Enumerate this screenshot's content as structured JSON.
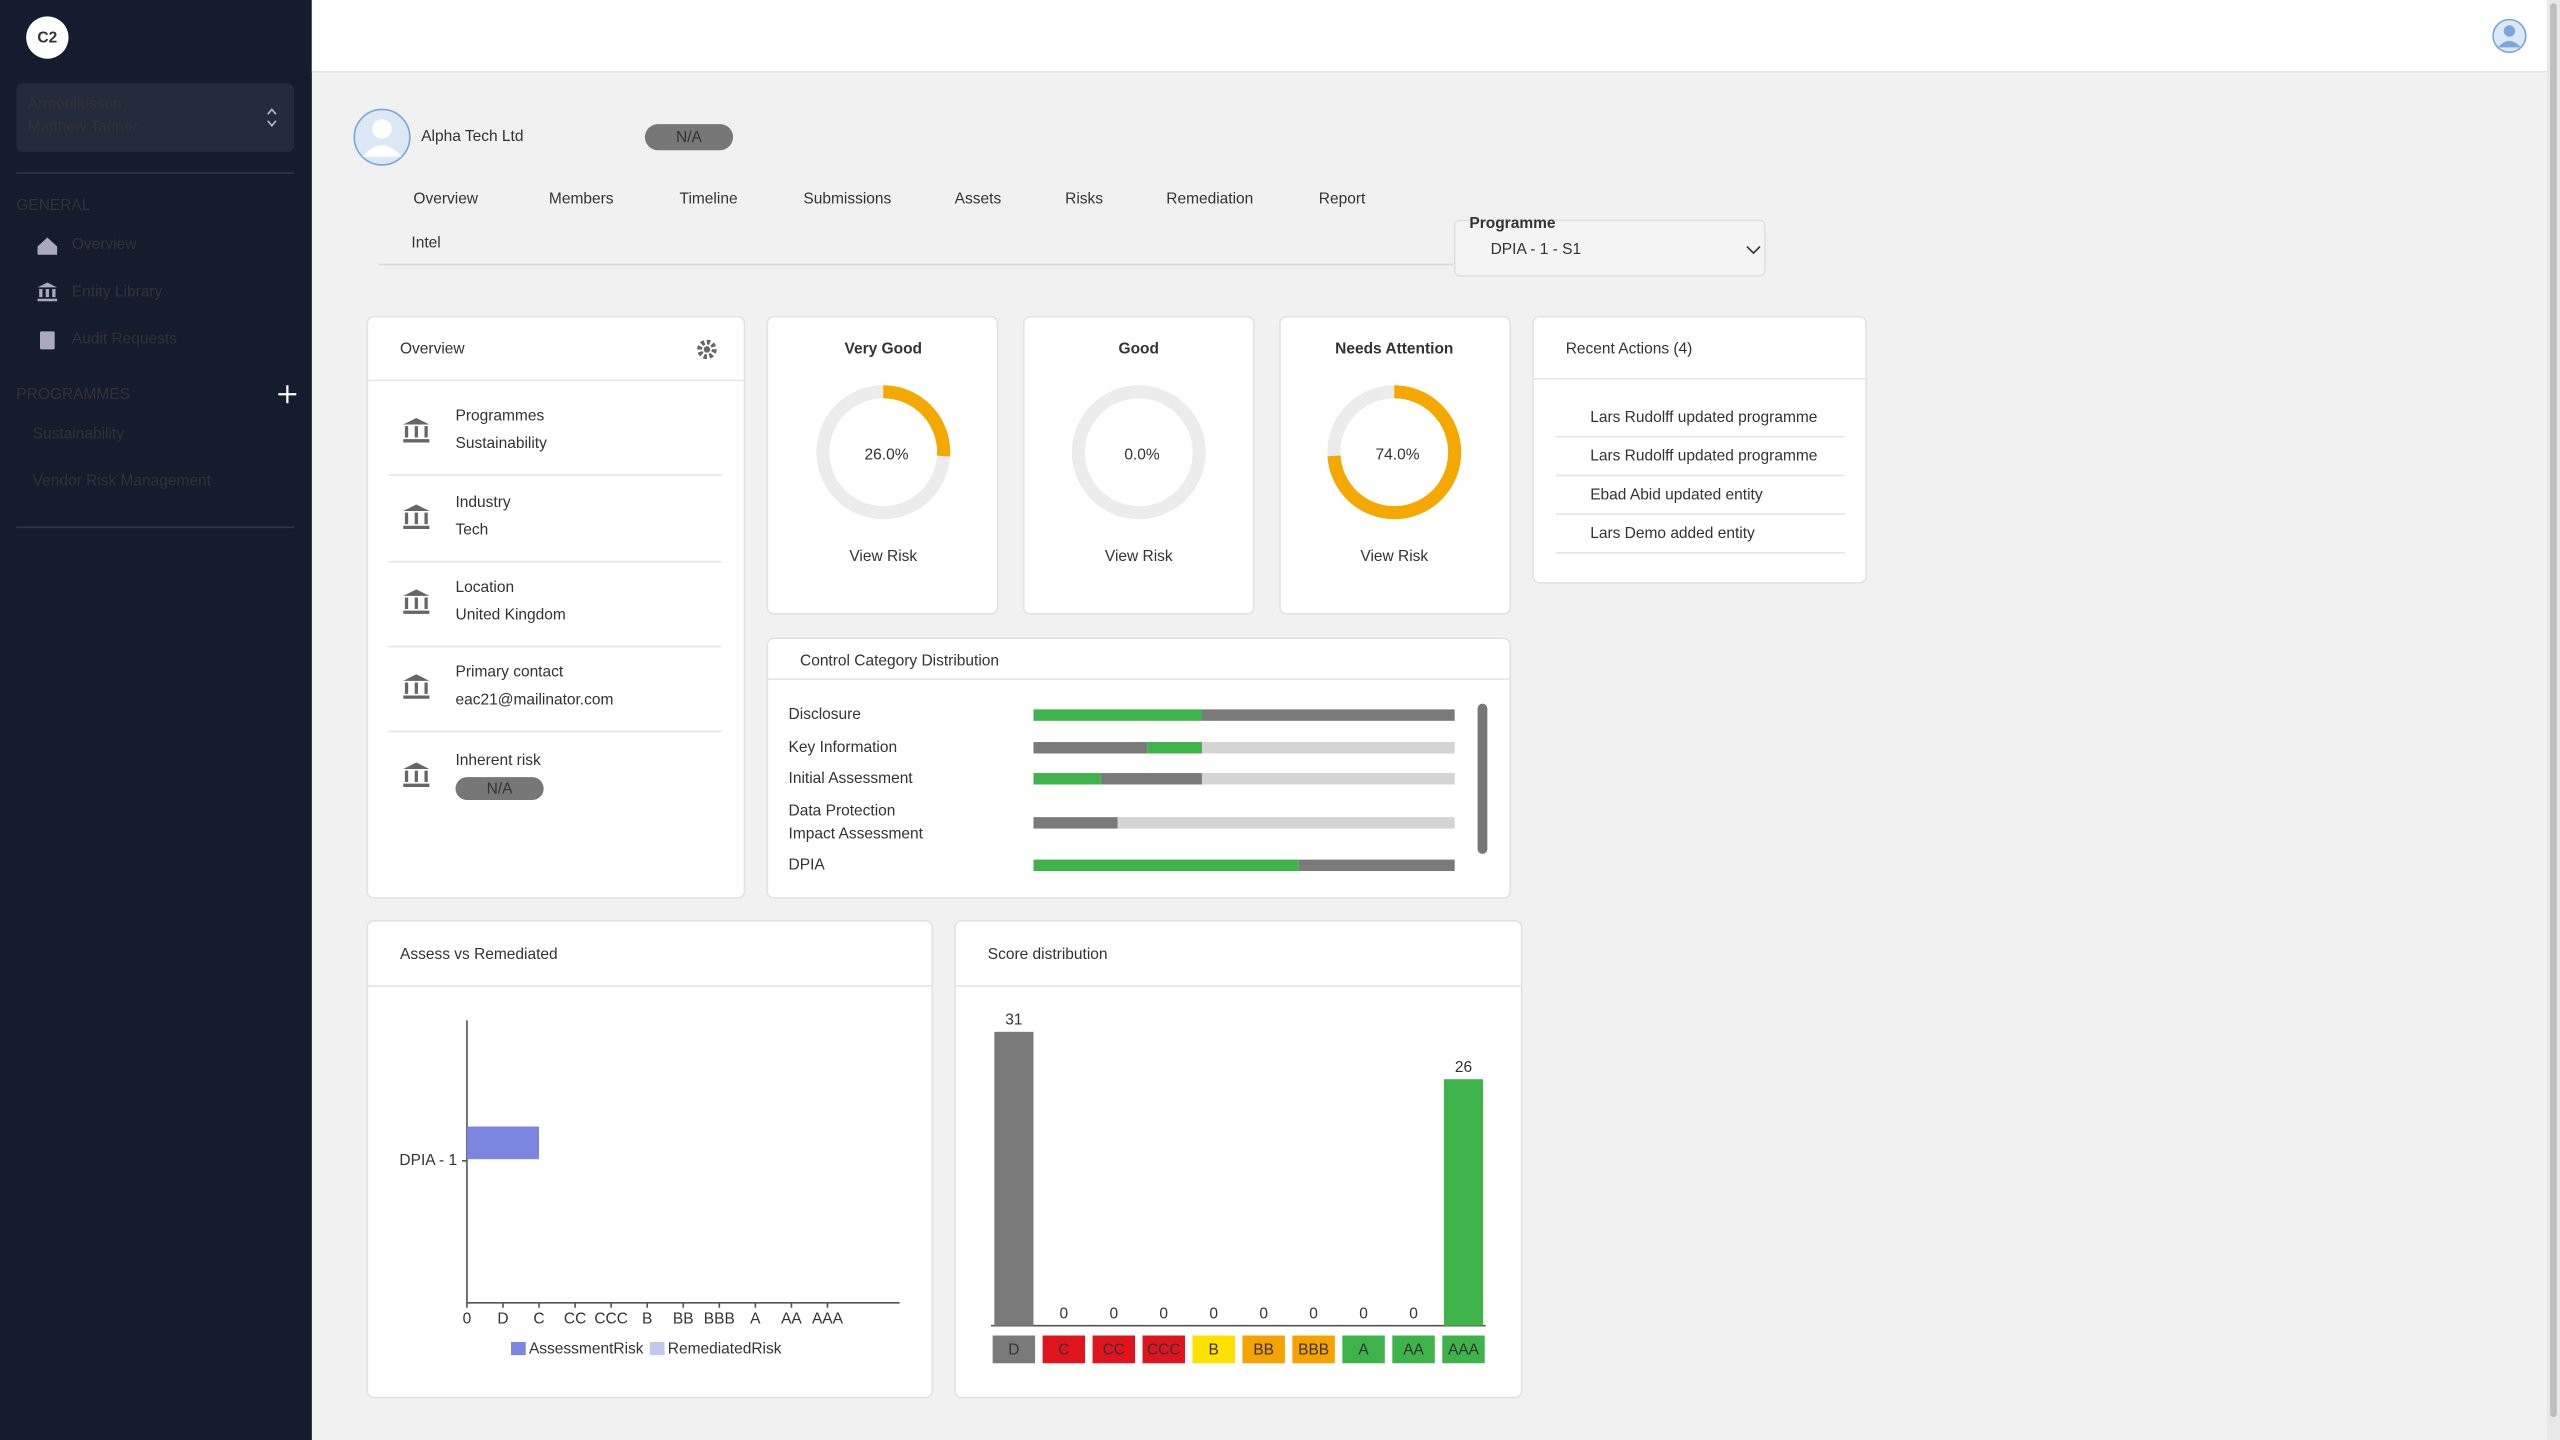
{
  "sidebar": {
    "logo": "C2",
    "org": "Armerillusson",
    "user": "Matthew Tanner",
    "general_heading": "GENERAL",
    "general_items": [
      "Overview",
      "Entity Library",
      "Audit Requests"
    ],
    "programmes_heading": "PROGRAMMES",
    "programmes": [
      "Sustainability",
      "Vendor Risk Management"
    ]
  },
  "header": {
    "title": "Alpha Tech Ltd",
    "badge": "N/A"
  },
  "tabs": [
    "Overview",
    "Members",
    "Timeline",
    "Submissions",
    "Assets",
    "Risks",
    "Remediation",
    "Report",
    "Intel"
  ],
  "programme_select": {
    "label": "Programme",
    "value": "DPIA - 1 - S1"
  },
  "overview": {
    "title": "Overview",
    "items": [
      {
        "label": "Programmes",
        "value": "Sustainability"
      },
      {
        "label": "Industry",
        "value": "Tech"
      },
      {
        "label": "Location",
        "value": "United Kingdom"
      },
      {
        "label": "Primary contact",
        "value": "eac21@mailinator.com"
      },
      {
        "label": "Inherent risk",
        "badge": "N/A"
      }
    ]
  },
  "gauges": [
    {
      "title": "Very Good",
      "title_color": "#17a589",
      "value": 26,
      "value_label": "26.0%",
      "link": "View Risk"
    },
    {
      "title": "Good",
      "title_color": "#f0a400",
      "value": 0,
      "value_label": "0.0%",
      "link": "View Risk"
    },
    {
      "title": "Needs Attention",
      "title_color": "#d0312d",
      "value": 74,
      "value_label": "74.0%",
      "link": "View Risk"
    }
  ],
  "recent_actions": {
    "title": "Recent Actions (4)",
    "items": [
      "Lars Rudolff updated programme",
      "Lars Rudolff updated programme",
      "Ebad Abid updated entity",
      "Lars Demo added entity"
    ]
  },
  "control_distribution": {
    "title": "Control Category Distribution",
    "rows": [
      {
        "label": "Disclosure",
        "segments": [
          {
            "color": "#3db34a",
            "value": 40
          },
          {
            "color": "#7a7a7a",
            "value": 60
          }
        ]
      },
      {
        "label": "Key Information",
        "segments": [
          {
            "color": "#7a7a7a",
            "value": 27
          },
          {
            "color": "#3db34a",
            "value": 13
          },
          {
            "color": "#d4d4d4",
            "value": 60
          }
        ]
      },
      {
        "label": "Initial Assessment",
        "segments": [
          {
            "color": "#3db34a",
            "value": 16
          },
          {
            "color": "#7a7a7a",
            "value": 24
          },
          {
            "color": "#d4d4d4",
            "value": 60
          }
        ]
      },
      {
        "label": "Data Protection Impact Assessment",
        "segments": [
          {
            "color": "#7a7a7a",
            "value": 20
          },
          {
            "color": "#d4d4d4",
            "value": 80
          }
        ]
      },
      {
        "label": "DPIA",
        "segments": [
          {
            "color": "#3db34a",
            "value": 63
          },
          {
            "color": "#7a7a7a",
            "value": 37
          }
        ]
      }
    ]
  },
  "assess_chart": {
    "type": "bar",
    "orientation": "horizontal",
    "title": "Assess vs Remediated",
    "categories": [
      "DPIA - 1"
    ],
    "series": [
      {
        "name": "AssessmentRisk",
        "color": "#7b86e0",
        "values": [
          2
        ]
      },
      {
        "name": "RemediatedRisk",
        "color": "#c3c7ef",
        "values": [
          0
        ]
      }
    ],
    "xlim": [
      0,
      12
    ],
    "xticks": [
      0,
      {
        "value": 1,
        "label": "D"
      },
      {
        "value": 2,
        "label": "C"
      },
      {
        "value": 3,
        "label": "CC"
      },
      {
        "value": 4,
        "label": "CCC"
      },
      {
        "value": 5,
        "label": "B"
      },
      {
        "value": 6,
        "label": "BB"
      },
      {
        "value": 7,
        "label": "BBB"
      },
      {
        "value": 8,
        "label": "A"
      },
      {
        "value": 9,
        "label": "AA"
      },
      {
        "value": 10,
        "label": "AAA"
      }
    ]
  },
  "score_chart": {
    "type": "bar",
    "title": "Score distribution",
    "categories": [
      "D",
      "C",
      "CC",
      "CCC",
      "B",
      "BB",
      "BBB",
      "A",
      "AA",
      "AAA"
    ],
    "values": [
      31,
      0,
      0,
      0,
      0,
      0,
      0,
      0,
      0,
      26
    ],
    "colors": [
      "#7a7a7a",
      "#e0141e",
      "#e0141e",
      "#e0141e",
      "#ffe100",
      "#f5a300",
      "#f5a300",
      "#3db34a",
      "#3db34a",
      "#3db34a"
    ]
  }
}
